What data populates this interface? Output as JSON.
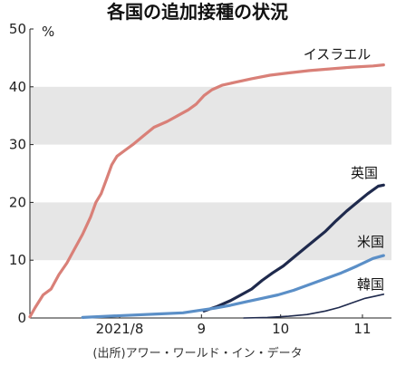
{
  "chart_data": {
    "type": "line",
    "title": "各国の追加接種の状況",
    "unit": "%",
    "source": "(出所)アワー・ワールド・イン・データ",
    "ylim": [
      0,
      50
    ],
    "y_ticks": [
      "0",
      "10",
      "20",
      "30",
      "40",
      "50"
    ],
    "x_ticks": [
      {
        "label": "2021/8",
        "date": "2021-08-15"
      },
      {
        "label": "9",
        "date": "2021-09-15"
      },
      {
        "label": "10",
        "date": "2021-10-15"
      },
      {
        "label": "11",
        "date": "2021-11-15"
      }
    ],
    "xlim": [
      "2021-07-12",
      "2021-11-26"
    ],
    "banding": "alternating gray bands 10-20 and 30-40",
    "series": [
      {
        "name": "イスラエル",
        "color": "#d98078",
        "points": [
          [
            "2021-07-12",
            0.2
          ],
          [
            "2021-07-14",
            1.8
          ],
          [
            "2021-07-17",
            4.0
          ],
          [
            "2021-07-20",
            5.0
          ],
          [
            "2021-07-23",
            7.5
          ],
          [
            "2021-07-26",
            9.5
          ],
          [
            "2021-07-29",
            12.0
          ],
          [
            "2021-08-01",
            14.5
          ],
          [
            "2021-08-04",
            17.5
          ],
          [
            "2021-08-06",
            20.0
          ],
          [
            "2021-08-08",
            21.5
          ],
          [
            "2021-08-10",
            24.0
          ],
          [
            "2021-08-12",
            26.5
          ],
          [
            "2021-08-14",
            28.0
          ],
          [
            "2021-08-17",
            29.0
          ],
          [
            "2021-08-20",
            30.0
          ],
          [
            "2021-08-24",
            31.5
          ],
          [
            "2021-08-28",
            33.0
          ],
          [
            "2021-09-02",
            34.0
          ],
          [
            "2021-09-06",
            35.0
          ],
          [
            "2021-09-10",
            36.0
          ],
          [
            "2021-09-13",
            37.0
          ],
          [
            "2021-09-16",
            38.5
          ],
          [
            "2021-09-19",
            39.5
          ],
          [
            "2021-09-23",
            40.3
          ],
          [
            "2021-09-28",
            40.8
          ],
          [
            "2021-10-04",
            41.4
          ],
          [
            "2021-10-11",
            42.0
          ],
          [
            "2021-10-18",
            42.4
          ],
          [
            "2021-10-26",
            42.8
          ],
          [
            "2021-11-03",
            43.1
          ],
          [
            "2021-11-11",
            43.4
          ],
          [
            "2021-11-19",
            43.6
          ],
          [
            "2021-11-23",
            43.8
          ]
        ]
      },
      {
        "name": "英国",
        "color": "#1f2a4d",
        "points": [
          [
            "2021-09-16",
            1.2
          ],
          [
            "2021-09-21",
            2.0
          ],
          [
            "2021-09-26",
            3.0
          ],
          [
            "2021-09-30",
            4.0
          ],
          [
            "2021-10-04",
            5.0
          ],
          [
            "2021-10-08",
            6.5
          ],
          [
            "2021-10-12",
            7.8
          ],
          [
            "2021-10-16",
            9.0
          ],
          [
            "2021-10-20",
            10.5
          ],
          [
            "2021-10-24",
            12.0
          ],
          [
            "2021-10-28",
            13.5
          ],
          [
            "2021-11-01",
            15.0
          ],
          [
            "2021-11-05",
            16.8
          ],
          [
            "2021-11-09",
            18.5
          ],
          [
            "2021-11-13",
            20.0
          ],
          [
            "2021-11-17",
            21.5
          ],
          [
            "2021-11-21",
            22.8
          ],
          [
            "2021-11-23",
            23.0
          ]
        ]
      },
      {
        "name": "米国",
        "color": "#5b8fc7",
        "points": [
          [
            "2021-08-01",
            0.1
          ],
          [
            "2021-08-10",
            0.3
          ],
          [
            "2021-08-20",
            0.5
          ],
          [
            "2021-08-30",
            0.7
          ],
          [
            "2021-09-08",
            0.9
          ],
          [
            "2021-09-14",
            1.3
          ],
          [
            "2021-09-20",
            1.7
          ],
          [
            "2021-09-26",
            2.2
          ],
          [
            "2021-10-02",
            2.8
          ],
          [
            "2021-10-08",
            3.4
          ],
          [
            "2021-10-14",
            4.0
          ],
          [
            "2021-10-20",
            4.8
          ],
          [
            "2021-10-26",
            5.8
          ],
          [
            "2021-11-01",
            6.8
          ],
          [
            "2021-11-07",
            7.8
          ],
          [
            "2021-11-13",
            9.0
          ],
          [
            "2021-11-19",
            10.3
          ],
          [
            "2021-11-23",
            10.8
          ]
        ]
      },
      {
        "name": "韓国",
        "color": "#1f2a4d",
        "points": [
          [
            "2021-10-01",
            0.0
          ],
          [
            "2021-10-10",
            0.1
          ],
          [
            "2021-10-18",
            0.3
          ],
          [
            "2021-10-25",
            0.6
          ],
          [
            "2021-11-01",
            1.2
          ],
          [
            "2021-11-06",
            1.8
          ],
          [
            "2021-11-11",
            2.6
          ],
          [
            "2021-11-16",
            3.4
          ],
          [
            "2021-11-20",
            3.8
          ],
          [
            "2021-11-23",
            4.1
          ]
        ]
      }
    ]
  }
}
